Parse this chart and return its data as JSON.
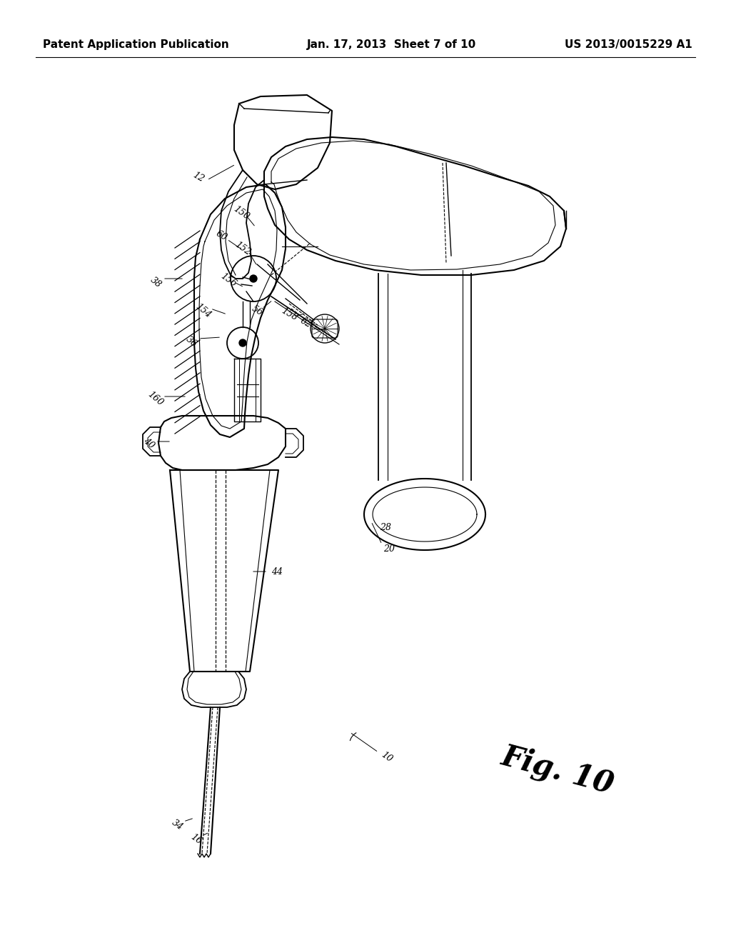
{
  "title_left": "Patent Application Publication",
  "title_center": "Jan. 17, 2013  Sheet 7 of 10",
  "title_right": "US 2013/0015229 A1",
  "fig_label": "Fig. 10",
  "background_color": "#ffffff",
  "line_color": "#000000",
  "header_fontsize": 11,
  "ref_fontsize": 9,
  "fig_label_fontsize": 30
}
